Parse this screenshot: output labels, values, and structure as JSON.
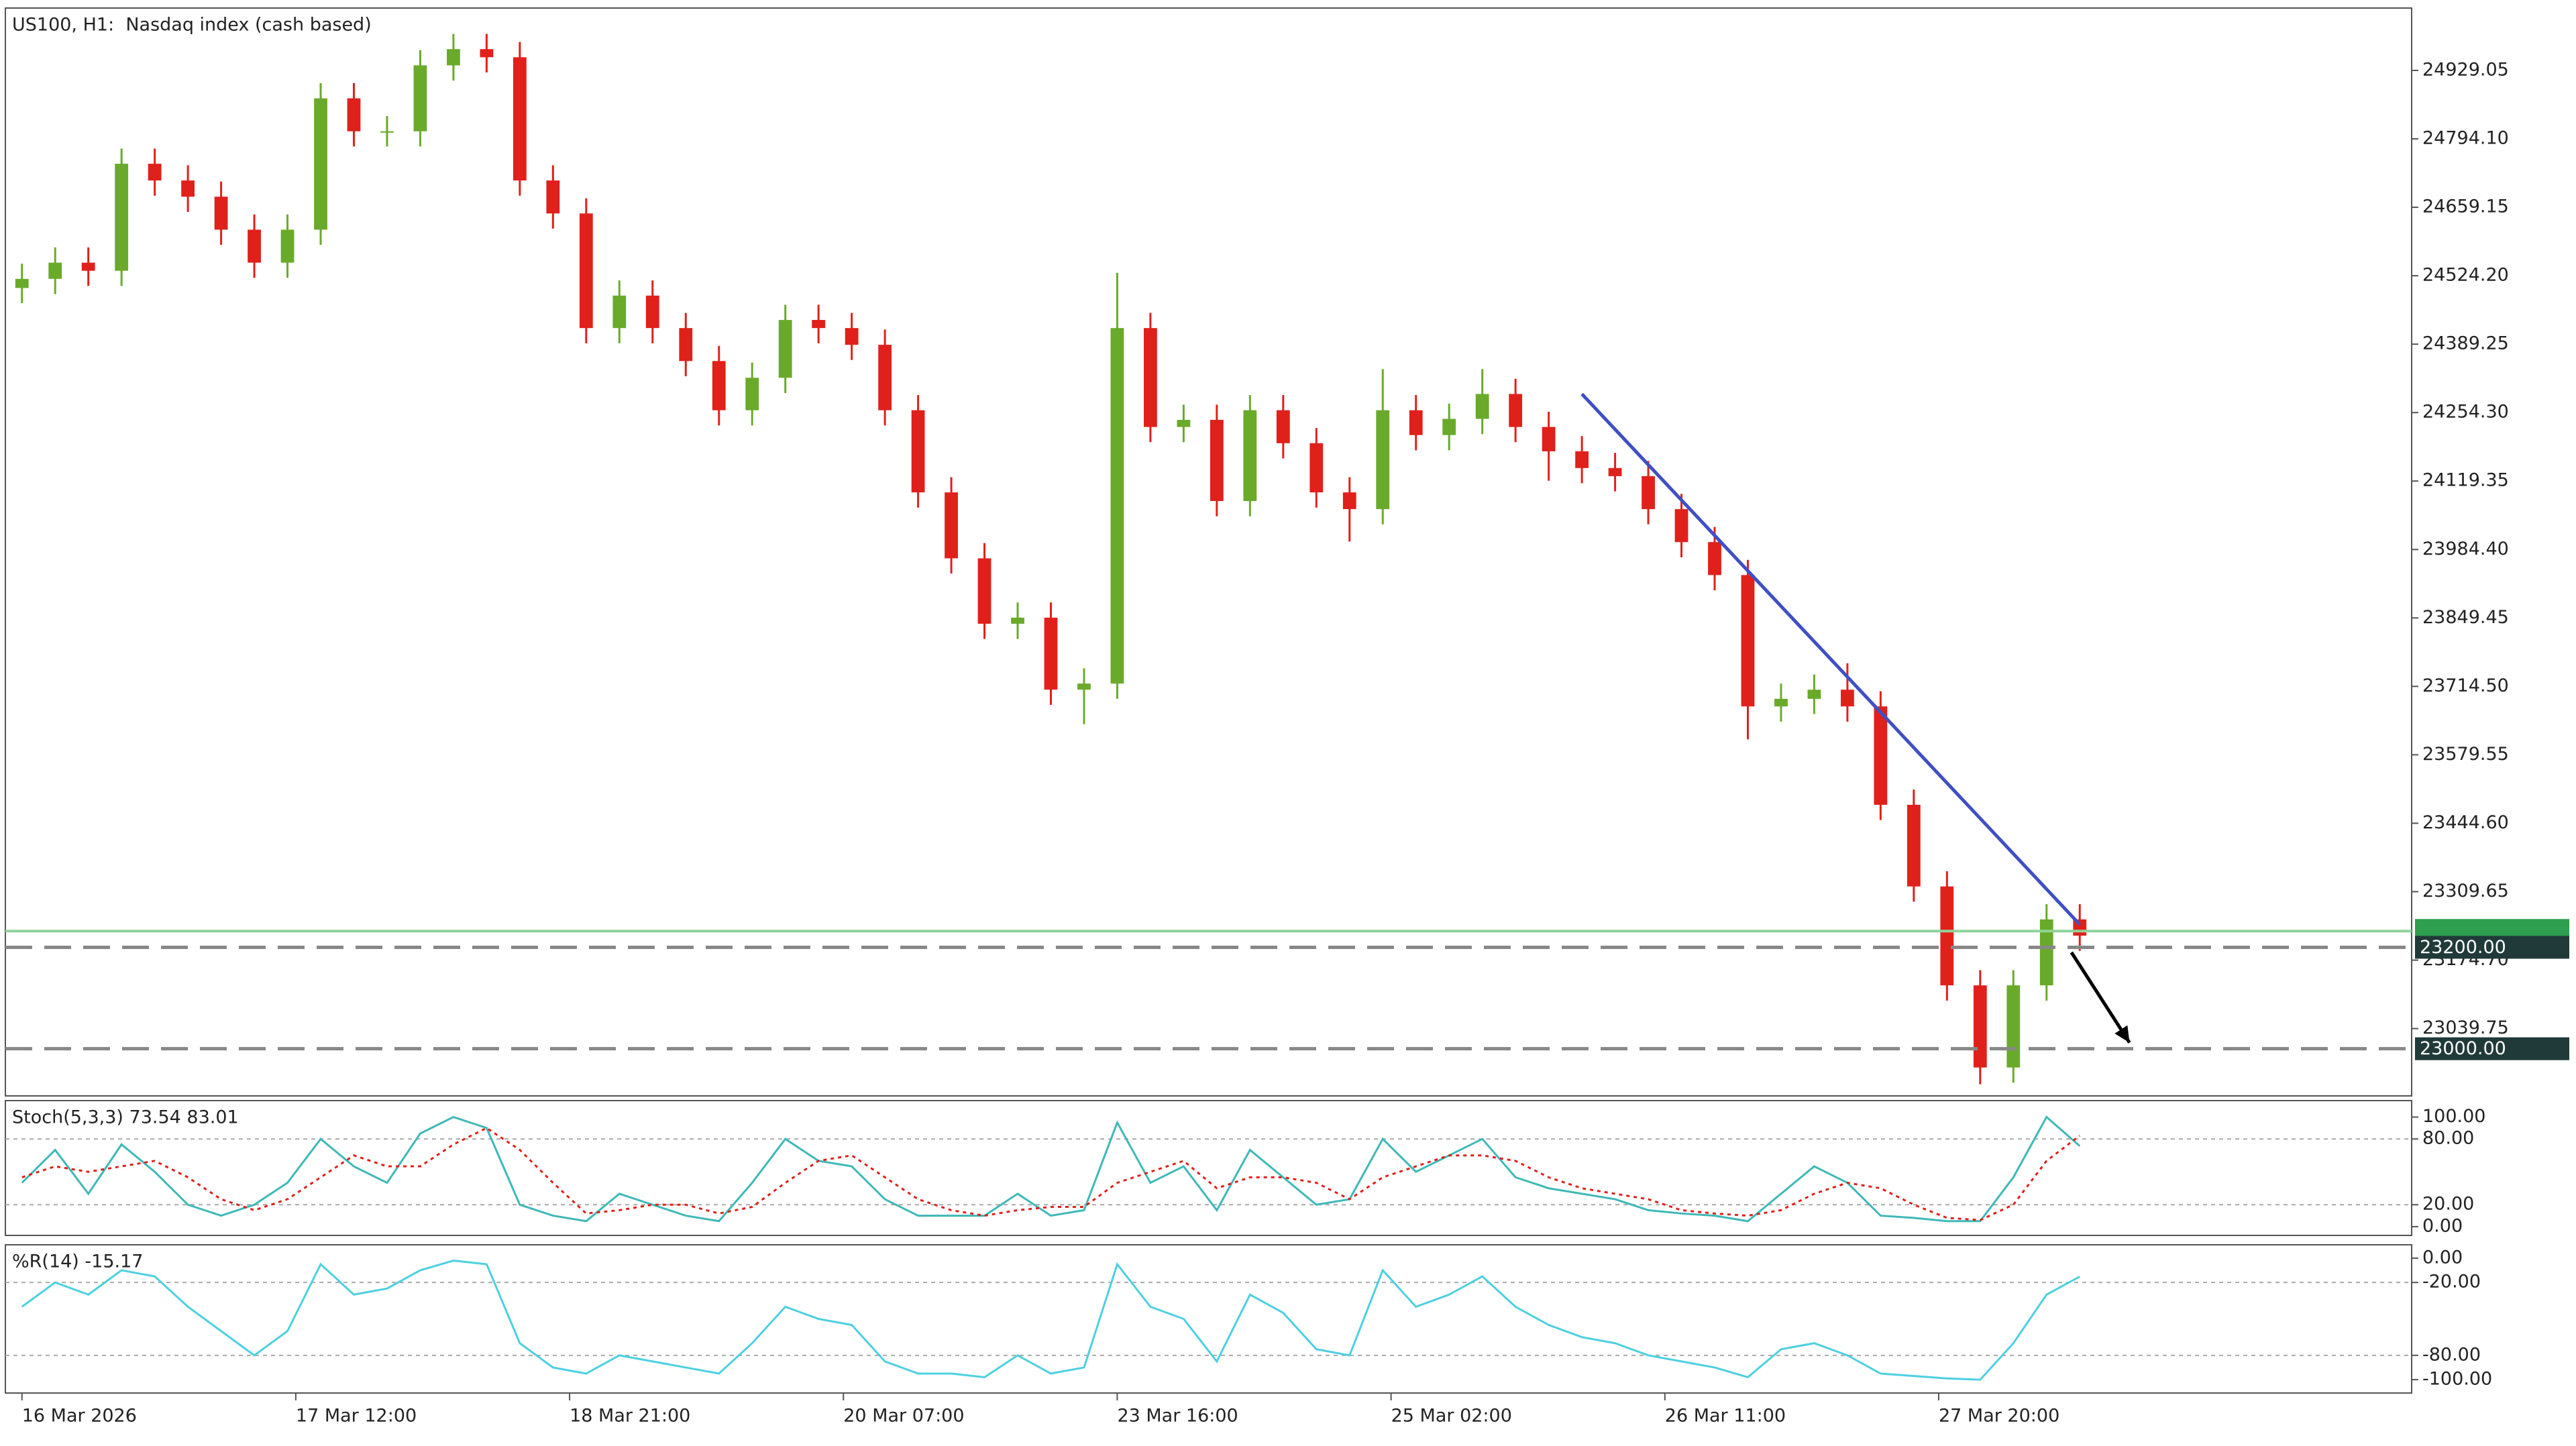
{
  "chart_data": [
    {
      "type": "candlestick",
      "title": "US100, H1:  Nasdaq index (cash based)",
      "x": [
        0,
        4,
        8,
        12,
        16,
        20,
        24,
        28,
        32,
        36,
        40,
        44,
        48,
        52,
        56,
        60,
        64,
        68,
        72,
        76,
        80,
        84,
        88,
        92,
        96,
        100,
        104,
        108,
        112,
        116,
        120,
        124,
        128,
        132,
        136,
        140,
        144,
        148,
        152,
        156,
        160,
        164,
        168,
        172,
        176,
        180,
        184,
        188,
        192,
        196,
        200,
        204,
        208,
        212,
        216,
        220,
        224,
        228,
        232,
        236,
        240,
        244,
        248
      ],
      "open": [
        24500,
        24518,
        24550,
        24534,
        24745,
        24712,
        24680,
        24615,
        24550,
        24615,
        24874,
        24809,
        24809,
        24939,
        24971,
        24955,
        24712,
        24647,
        24421,
        24485,
        24421,
        24356,
        24259,
        24323,
        24437,
        24421,
        24388,
        24259,
        24097,
        23967,
        23838,
        23850,
        23708,
        23720,
        24421,
        24226,
        24240,
        24080,
        24259,
        24194,
        24097,
        24064,
        24259,
        24210,
        24242,
        24291,
        24226,
        24178,
        24145,
        24129,
        24064,
        23999,
        23934,
        23675,
        23690,
        23708,
        23675,
        23481,
        23320,
        23125,
        22963,
        23125,
        23255
      ],
      "high": [
        24548,
        24580,
        24580,
        24775,
        24775,
        24742,
        24710,
        24645,
        24645,
        24904,
        24904,
        24839,
        24969,
        25001,
        25001,
        24985,
        24742,
        24677,
        24515,
        24515,
        24451,
        24386,
        24353,
        24467,
        24467,
        24451,
        24418,
        24289,
        24127,
        23997,
        23880,
        23880,
        23750,
        24530,
        24451,
        24270,
        24270,
        24289,
        24289,
        24224,
        24127,
        24340,
        24289,
        24272,
        24340,
        24321,
        24256,
        24208,
        24175,
        24159,
        24094,
        24029,
        23964,
        23720,
        23738,
        23760,
        23705,
        23511,
        23350,
        23155,
        23155,
        23285,
        23285
      ],
      "low": [
        24470,
        24488,
        24504,
        24504,
        24682,
        24650,
        24585,
        24520,
        24520,
        24585,
        24779,
        24779,
        24779,
        24909,
        24925,
        24682,
        24617,
        24391,
        24391,
        24391,
        24326,
        24229,
        24229,
        24293,
        24391,
        24358,
        24229,
        24067,
        23937,
        23808,
        23808,
        23678,
        23640,
        23690,
        24196,
        24196,
        24050,
        24050,
        24164,
        24067,
        24000,
        24034,
        24180,
        24180,
        24212,
        24196,
        24120,
        24115,
        24099,
        24034,
        23969,
        23904,
        23610,
        23645,
        23660,
        23645,
        23451,
        23290,
        23095,
        22930,
        22933,
        23095,
        23193
      ],
      "close": [
        24518,
        24550,
        24534,
        24745,
        24712,
        24680,
        24615,
        24550,
        24615,
        24874,
        24809,
        24809,
        24939,
        24971,
        24955,
        24712,
        24647,
        24421,
        24485,
        24421,
        24356,
        24259,
        24323,
        24437,
        24421,
        24388,
        24259,
        24097,
        23967,
        23838,
        23850,
        23708,
        23720,
        24421,
        24226,
        24240,
        24080,
        24259,
        24194,
        24097,
        24064,
        24259,
        24210,
        24242,
        24291,
        24226,
        24178,
        24145,
        24129,
        24064,
        23999,
        23934,
        23675,
        23690,
        23708,
        23675,
        23481,
        23320,
        23125,
        22963,
        23125,
        23255,
        23223
      ],
      "up_color": "#6aaa2a",
      "down_color": "#e0201b",
      "xlim": [
        -2,
        288
      ],
      "xticks": [
        {
          "value": 0,
          "label": "16 Mar 2026"
        },
        {
          "value": 33,
          "label": "17 Mar 12:00"
        },
        {
          "value": 66,
          "label": "18 Mar 21:00"
        },
        {
          "value": 99,
          "label": "20 Mar 07:00"
        },
        {
          "value": 132,
          "label": "23 Mar 16:00"
        },
        {
          "value": 165,
          "label": "25 Mar 02:00"
        },
        {
          "value": 198,
          "label": "26 Mar 11:00"
        },
        {
          "value": 231,
          "label": "27 Mar 20:00"
        }
      ],
      "ylim": [
        22907,
        25052
      ],
      "yticks": [
        24929.05,
        {
          "value": 24794.1,
          "label": "24794.10"
        },
        24659.15,
        {
          "value": 24524.2,
          "label": "24524.20"
        },
        24389.25,
        {
          "value": 24254.3,
          "label": "24254.30"
        },
        24119.35,
        {
          "value": 23984.4,
          "label": "23984.40"
        },
        23849.45,
        {
          "value": 23714.5,
          "label": "23714.50"
        },
        23579.55,
        {
          "value": 23444.6,
          "label": "23444.60"
        },
        23309.65,
        {
          "value": 23174.7,
          "label": "23174.70"
        },
        23039.75
      ],
      "levels": [
        {
          "value": 23200,
          "label": "23200.00"
        },
        {
          "value": 23000,
          "label": "23000.00"
        }
      ],
      "current_price": 23232,
      "current_price_color": "#8fd39a",
      "trendline": {
        "x": [
          188,
          248
        ],
        "y": [
          24291,
          23245
        ],
        "color": "#3f4fc4"
      },
      "arrow": {
        "x": [
          247,
          254
        ],
        "y": [
          23190,
          23012
        ],
        "color": "#000000"
      }
    },
    {
      "type": "line",
      "title": "Stoch(5,3,3) 73.54 83.01",
      "ylim": [
        -8,
        115
      ],
      "yticks": [
        {
          "value": 100,
          "label": "100.00"
        },
        {
          "value": 80,
          "label": "80.00"
        },
        {
          "value": 20,
          "label": "20.00"
        },
        {
          "value": 0,
          "label": "0.00"
        }
      ],
      "levels": [
        80,
        20
      ],
      "series": [
        {
          "color": "#3fb8b8",
          "values": [
            40,
            70,
            30,
            75,
            50,
            20,
            10,
            20,
            40,
            80,
            55,
            40,
            85,
            100,
            90,
            20,
            10,
            5,
            30,
            20,
            10,
            5,
            40,
            80,
            60,
            55,
            25,
            10,
            10,
            10,
            30,
            10,
            15,
            95,
            40,
            55,
            15,
            70,
            45,
            20,
            25,
            80,
            50,
            65,
            80,
            45,
            35,
            30,
            25,
            15,
            12,
            10,
            5,
            30,
            55,
            40,
            10,
            8,
            5,
            5,
            45,
            100,
            73.54
          ]
        },
        {
          "color": "#e0201b",
          "dash": true,
          "values": [
            45,
            55,
            50,
            55,
            60,
            45,
            25,
            15,
            25,
            45,
            65,
            55,
            55,
            75,
            90,
            70,
            40,
            12,
            15,
            20,
            20,
            12,
            18,
            40,
            60,
            65,
            45,
            25,
            15,
            10,
            15,
            18,
            18,
            40,
            50,
            60,
            35,
            45,
            45,
            40,
            25,
            45,
            55,
            65,
            65,
            60,
            45,
            35,
            30,
            25,
            15,
            12,
            10,
            15,
            30,
            40,
            35,
            20,
            8,
            6,
            20,
            60,
            83.01
          ]
        }
      ]
    },
    {
      "type": "line",
      "title": "%R(14) -15.17",
      "ylim": [
        -111,
        11
      ],
      "yticks": [
        {
          "value": 0,
          "label": "0.00"
        },
        {
          "value": -20,
          "label": "-20.00"
        },
        {
          "value": -80,
          "label": "-80.00"
        },
        {
          "value": -100,
          "label": "-100.00"
        }
      ],
      "levels": [
        -20,
        -80
      ],
      "series": [
        {
          "color": "#4dd0e1",
          "values": [
            -40,
            -20,
            -30,
            -10,
            -15,
            -40,
            -60,
            -80,
            -60,
            -5,
            -30,
            -25,
            -10,
            -2,
            -5,
            -70,
            -90,
            -95,
            -80,
            -85,
            -90,
            -95,
            -70,
            -40,
            -50,
            -55,
            -85,
            -95,
            -95,
            -98,
            -80,
            -95,
            -90,
            -5,
            -40,
            -50,
            -85,
            -30,
            -45,
            -75,
            -80,
            -10,
            -40,
            -30,
            -15,
            -40,
            -55,
            -65,
            -70,
            -80,
            -85,
            -90,
            -98,
            -75,
            -70,
            -80,
            -95,
            -97,
            -99,
            -100,
            -70,
            -30,
            -15.17
          ]
        }
      ]
    }
  ]
}
